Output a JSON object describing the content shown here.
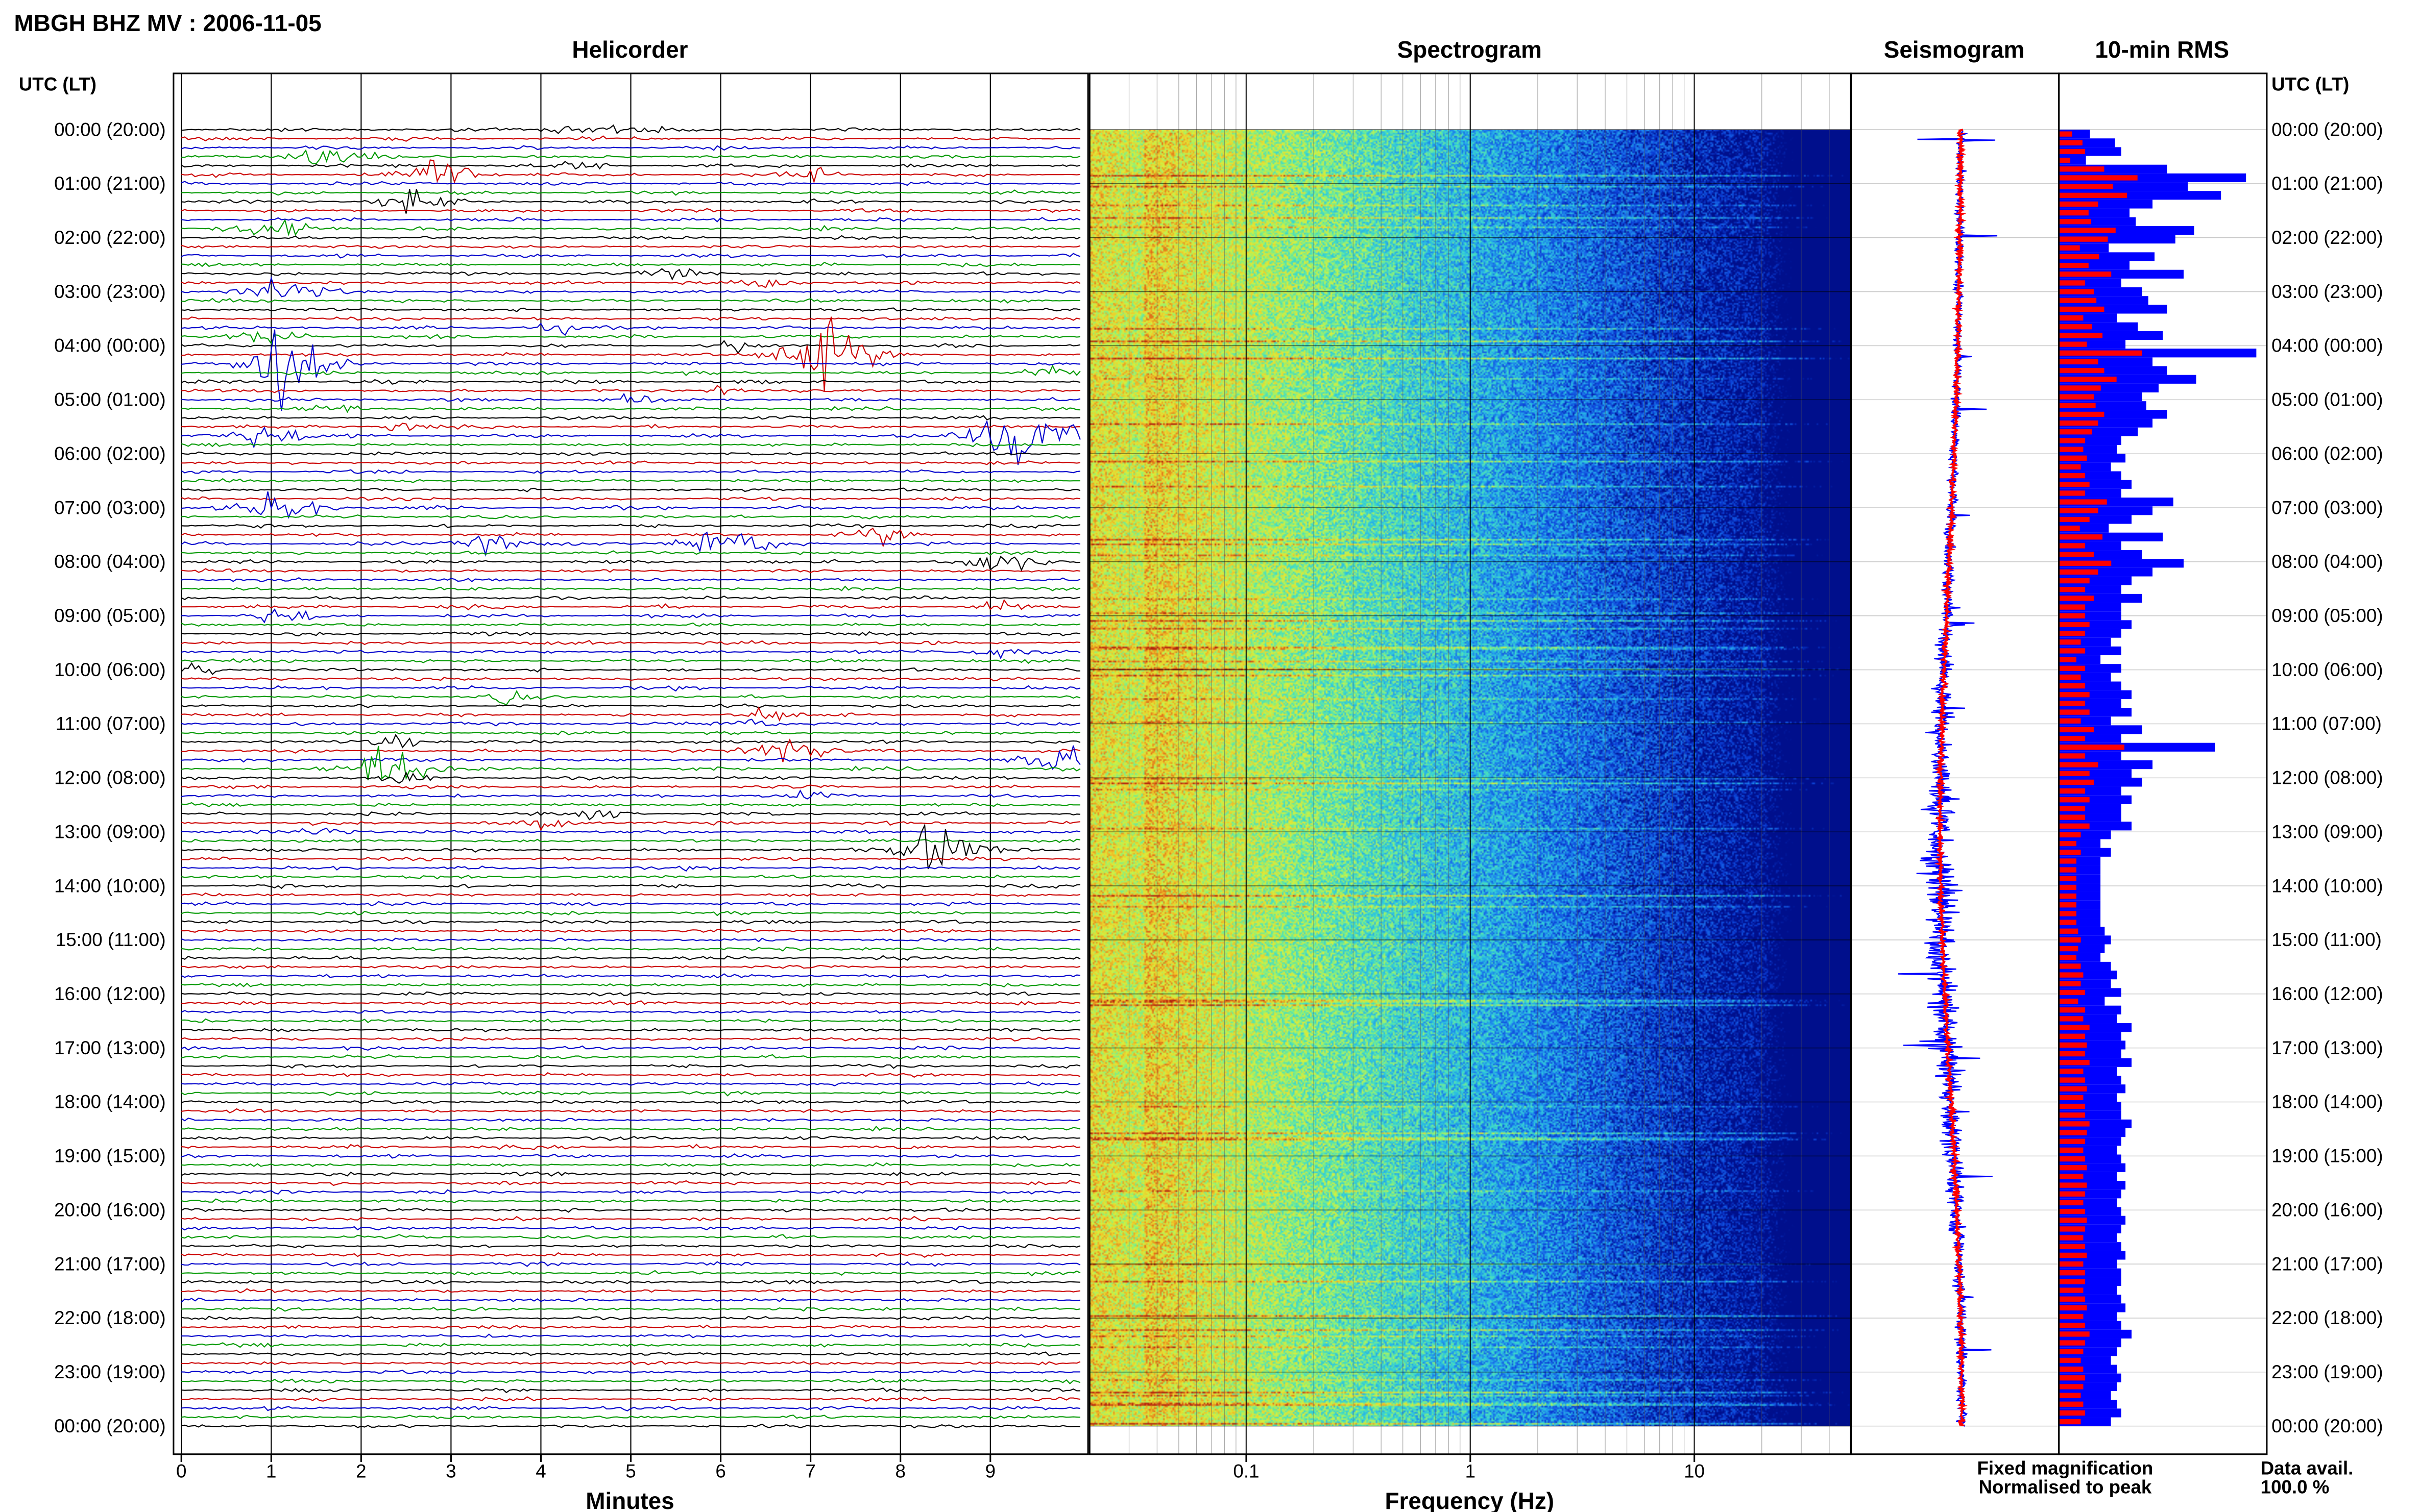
{
  "title": "MBGH BHZ MV : 2006-11-05",
  "time_axis_label": "UTC (LT)",
  "panels": {
    "helicorder": "Helicorder",
    "spectrogram": "Spectrogram",
    "seismogram": "Seismogram",
    "rms": "10-min RMS"
  },
  "legend": {
    "fixed": "Fixed magnification",
    "normalised": "Normalised to peak",
    "fixed_color": "#0000ff",
    "normalised_color": "#ff0000"
  },
  "data_avail": {
    "label": "Data avail.",
    "value": "100.0 %"
  },
  "chart_data": {
    "type": "heatmap",
    "hour_labels": [
      "00:00 (20:00)",
      "01:00 (21:00)",
      "02:00 (22:00)",
      "03:00 (23:00)",
      "04:00 (00:00)",
      "05:00 (01:00)",
      "06:00 (02:00)",
      "07:00 (03:00)",
      "08:00 (04:00)",
      "09:00 (05:00)",
      "10:00 (06:00)",
      "11:00 (07:00)",
      "12:00 (08:00)",
      "13:00 (09:00)",
      "14:00 (10:00)",
      "15:00 (11:00)",
      "16:00 (12:00)",
      "17:00 (13:00)",
      "18:00 (14:00)",
      "19:00 (15:00)",
      "20:00 (16:00)",
      "21:00 (17:00)",
      "22:00 (18:00)",
      "23:00 (19:00)",
      "00:00 (20:00)"
    ],
    "helicorder": {
      "xlabel": "Minutes",
      "x_ticks": [
        "0",
        "1",
        "2",
        "3",
        "4",
        "5",
        "6",
        "7",
        "8",
        "9"
      ],
      "xlim": [
        0,
        10
      ],
      "trace_colors": [
        "#000000",
        "#cc0000",
        "#0000cc",
        "#009900"
      ],
      "events": [
        {
          "row": 0,
          "minute": 4.9,
          "amp": 0.4,
          "width": 0.5
        },
        {
          "row": 0,
          "minute": 4.2,
          "amp": 0.3,
          "width": 0.4
        },
        {
          "row": 3,
          "minute": 1.5,
          "amp": 1.0,
          "width": 0.6
        },
        {
          "row": 4,
          "minute": 4.3,
          "amp": 0.4,
          "width": 0.4
        },
        {
          "row": 5,
          "minute": 2.7,
          "amp": 1.2,
          "width": 0.6
        },
        {
          "row": 5,
          "minute": 7.0,
          "amp": 0.4,
          "width": 0.4
        },
        {
          "row": 8,
          "minute": 2.5,
          "amp": 1.0,
          "width": 0.5
        },
        {
          "row": 11,
          "minute": 1.0,
          "amp": 0.8,
          "width": 0.6
        },
        {
          "row": 16,
          "minute": 5.4,
          "amp": 0.5,
          "width": 0.5
        },
        {
          "row": 17,
          "minute": 6.5,
          "amp": 0.4,
          "width": 0.4
        },
        {
          "row": 18,
          "minute": 1.0,
          "amp": 1.0,
          "width": 0.6
        },
        {
          "row": 22,
          "minute": 4.1,
          "amp": 0.4,
          "width": 0.4
        },
        {
          "row": 23,
          "minute": 0.9,
          "amp": 0.6,
          "width": 0.5
        },
        {
          "row": 24,
          "minute": 6.1,
          "amp": 0.4,
          "width": 0.3
        },
        {
          "row": 25,
          "minute": 7.0,
          "amp": 2.6,
          "width": 0.7
        },
        {
          "row": 26,
          "minute": 1.0,
          "amp": 3.5,
          "width": 0.6
        },
        {
          "row": 27,
          "minute": 9.6,
          "amp": 0.5,
          "width": 0.4
        },
        {
          "row": 29,
          "minute": 6.0,
          "amp": 0.4,
          "width": 0.3
        },
        {
          "row": 30,
          "minute": 4.9,
          "amp": 0.5,
          "width": 0.4
        },
        {
          "row": 31,
          "minute": 1.6,
          "amp": 0.4,
          "width": 0.4
        },
        {
          "row": 33,
          "minute": 2.4,
          "amp": 0.4,
          "width": 0.3
        },
        {
          "row": 34,
          "minute": 9.2,
          "amp": 2.2,
          "width": 0.8
        },
        {
          "row": 34,
          "minute": 0.8,
          "amp": 0.9,
          "width": 0.6
        },
        {
          "row": 42,
          "minute": 1.0,
          "amp": 1.2,
          "width": 0.6
        },
        {
          "row": 45,
          "minute": 7.7,
          "amp": 0.6,
          "width": 0.5
        },
        {
          "row": 46,
          "minute": 3.3,
          "amp": 0.7,
          "width": 0.5
        },
        {
          "row": 46,
          "minute": 5.9,
          "amp": 1.2,
          "width": 0.7
        },
        {
          "row": 48,
          "minute": 9.0,
          "amp": 0.8,
          "width": 0.6
        },
        {
          "row": 53,
          "minute": 9.0,
          "amp": 0.5,
          "width": 0.4
        },
        {
          "row": 54,
          "minute": 1.0,
          "amp": 0.6,
          "width": 0.5
        },
        {
          "row": 58,
          "minute": 9.0,
          "amp": 0.5,
          "width": 0.5
        },
        {
          "row": 60,
          "minute": 0.1,
          "amp": 0.7,
          "width": 0.3
        },
        {
          "row": 63,
          "minute": 3.6,
          "amp": 0.5,
          "width": 0.4
        },
        {
          "row": 65,
          "minute": 6.4,
          "amp": 0.6,
          "width": 0.4
        },
        {
          "row": 66,
          "minute": 6.2,
          "amp": 0.5,
          "width": 0.4
        },
        {
          "row": 68,
          "minute": 2.3,
          "amp": 0.5,
          "width": 0.4
        },
        {
          "row": 69,
          "minute": 6.6,
          "amp": 1.1,
          "width": 0.6
        },
        {
          "row": 70,
          "minute": 9.6,
          "amp": 1.6,
          "width": 0.5
        },
        {
          "row": 71,
          "minute": 2.2,
          "amp": 1.8,
          "width": 0.6
        },
        {
          "row": 72,
          "minute": 2.4,
          "amp": 0.5,
          "width": 0.4
        },
        {
          "row": 74,
          "minute": 6.9,
          "amp": 0.4,
          "width": 0.4
        },
        {
          "row": 76,
          "minute": 4.6,
          "amp": 0.4,
          "width": 0.4
        },
        {
          "row": 77,
          "minute": 4.0,
          "amp": 0.4,
          "width": 0.4
        },
        {
          "row": 78,
          "minute": 1.5,
          "amp": 0.4,
          "width": 0.4
        },
        {
          "row": 80,
          "minute": 8.3,
          "amp": 2.0,
          "width": 0.6
        }
      ]
    },
    "spectrogram": {
      "xlabel": "Frequency (Hz)",
      "xscale": "log",
      "xlim": [
        0.02,
        50
      ],
      "x_ticks": [
        {
          "value": 0.1,
          "label": "0.1"
        },
        {
          "value": 1,
          "label": "1"
        },
        {
          "value": 10,
          "label": "10"
        }
      ],
      "colormap": [
        "#000f8c",
        "#0b3ed6",
        "#1a73ea",
        "#27b4e8",
        "#3fdcc8",
        "#8cf07a",
        "#d7f03c",
        "#f0c82a",
        "#e06a18",
        "#b01e0e"
      ]
    },
    "seismogram": {
      "series": [
        {
          "name": "Fixed magnification",
          "color": "#0000ff"
        },
        {
          "name": "Normalised to peak",
          "color": "#ff0000"
        }
      ]
    },
    "rms": {
      "series_colors": [
        "#0000ff",
        "#ff0000"
      ],
      "fixed": [
        0.15,
        0.27,
        0.3,
        0.13,
        0.52,
        0.9,
        0.62,
        0.78,
        0.45,
        0.34,
        0.37,
        0.65,
        0.56,
        0.24,
        0.46,
        0.34,
        0.6,
        0.3,
        0.4,
        0.43,
        0.52,
        0.28,
        0.38,
        0.5,
        0.32,
        0.95,
        0.45,
        0.52,
        0.66,
        0.48,
        0.4,
        0.42,
        0.52,
        0.45,
        0.38,
        0.3,
        0.28,
        0.32,
        0.25,
        0.3,
        0.35,
        0.3,
        0.55,
        0.45,
        0.35,
        0.24,
        0.5,
        0.3,
        0.4,
        0.6,
        0.45,
        0.35,
        0.3,
        0.4,
        0.3,
        0.3,
        0.35,
        0.3,
        0.25,
        0.3,
        0.2,
        0.3,
        0.25,
        0.3,
        0.35,
        0.3,
        0.35,
        0.25,
        0.4,
        0.3,
        0.75,
        0.3,
        0.45,
        0.35,
        0.4,
        0.3,
        0.35,
        0.3,
        0.3,
        0.35,
        0.25,
        0.2,
        0.25,
        0.2,
        0.2,
        0.2,
        0.2,
        0.2,
        0.2,
        0.2,
        0.2,
        0.22,
        0.25,
        0.22,
        0.2,
        0.25,
        0.28,
        0.25,
        0.3,
        0.22,
        0.3,
        0.28,
        0.35,
        0.3,
        0.32,
        0.3,
        0.35,
        0.28,
        0.3,
        0.32,
        0.28,
        0.3,
        0.3,
        0.35,
        0.32,
        0.3,
        0.28,
        0.3,
        0.32,
        0.28,
        0.32,
        0.3,
        0.28,
        0.3,
        0.32,
        0.3,
        0.28,
        0.3,
        0.32,
        0.28,
        0.3,
        0.3,
        0.28,
        0.3,
        0.32,
        0.28,
        0.3,
        0.35,
        0.3,
        0.28,
        0.25,
        0.28,
        0.3,
        0.28,
        0.25,
        0.28,
        0.3,
        0.25
      ]
    }
  }
}
